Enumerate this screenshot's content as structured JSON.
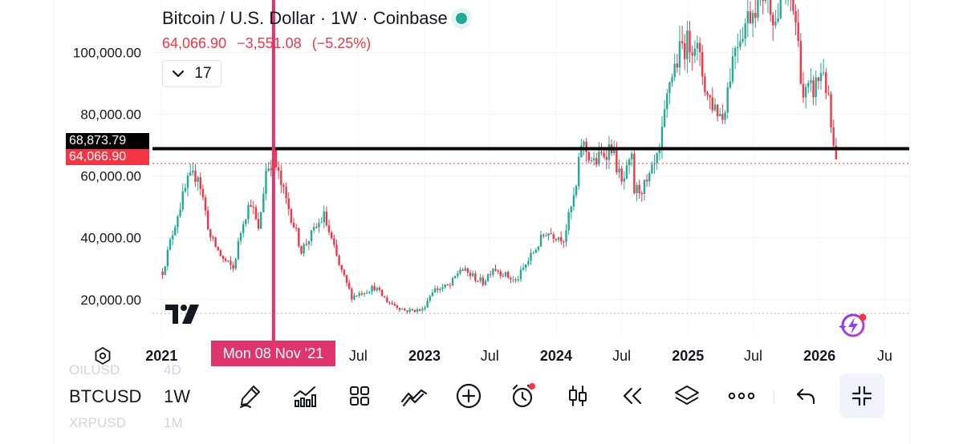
{
  "chart_data": {
    "type": "candlestick",
    "title": "Bitcoin / U.S. Dollar · 1W · Coinbase",
    "last_price": "64,066.90",
    "change": "−3,551.08",
    "change_pct": "(−5.25%)",
    "indicator_count": "17",
    "y_ticks": [
      {
        "value": 20000,
        "label": "20,000.00"
      },
      {
        "value": 40000,
        "label": "40,000.00"
      },
      {
        "value": 60000,
        "label": "60,000.00"
      },
      {
        "value": 80000,
        "label": "80,000.00"
      },
      {
        "value": 100000,
        "label": "100,000.00"
      }
    ],
    "x_ticks": [
      {
        "date": "2021-01-01",
        "label": "2021",
        "bold": true
      },
      {
        "date": "2022-07-01",
        "label": "Jul",
        "bold": false
      },
      {
        "date": "2023-01-01",
        "label": "2023",
        "bold": true
      },
      {
        "date": "2023-07-01",
        "label": "Jul",
        "bold": false
      },
      {
        "date": "2024-01-01",
        "label": "2024",
        "bold": true
      },
      {
        "date": "2024-07-01",
        "label": "Jul",
        "bold": false
      },
      {
        "date": "2025-01-01",
        "label": "2025",
        "bold": true
      },
      {
        "date": "2025-07-01",
        "label": "Jul",
        "bold": false
      },
      {
        "date": "2026-01-01",
        "label": "2026",
        "bold": true
      },
      {
        "date": "2026-07-01",
        "label": "Ju",
        "bold": false
      }
    ],
    "y_range": [
      8000,
      117000
    ],
    "x_range": [
      "2020-12-07",
      "2026-09-07"
    ],
    "horizontal_line": {
      "value": 68873.79,
      "label": "68,873.79",
      "color": "#000000"
    },
    "last_price_line": {
      "value": 64066.9,
      "label": "64,066.90",
      "color": "#f23645"
    },
    "low_line": {
      "value": 15500
    },
    "crosshair": {
      "date": "2021-11-08",
      "label": "Mon 08 Nov '21",
      "color": "#e0356c"
    },
    "up_color": "#22ab94",
    "down_color": "#f23645",
    "anchors": [
      [
        "2021-01-04",
        29000
      ],
      [
        "2021-02-15",
        48000
      ],
      [
        "2021-03-15",
        58000
      ],
      [
        "2021-04-12",
        61000
      ],
      [
        "2021-05-17",
        40000
      ],
      [
        "2021-06-21",
        33000
      ],
      [
        "2021-07-19",
        30000
      ],
      [
        "2021-08-16",
        46000
      ],
      [
        "2021-09-06",
        52000
      ],
      [
        "2021-09-27",
        42000
      ],
      [
        "2021-10-18",
        62000
      ],
      [
        "2021-11-08",
        66000
      ],
      [
        "2021-11-29",
        57000
      ],
      [
        "2021-12-27",
        47000
      ],
      [
        "2022-01-24",
        36000
      ],
      [
        "2022-03-28",
        47000
      ],
      [
        "2022-05-09",
        31000
      ],
      [
        "2022-06-13",
        21000
      ],
      [
        "2022-08-15",
        24000
      ],
      [
        "2022-09-19",
        19500
      ],
      [
        "2022-11-07",
        16500
      ],
      [
        "2022-12-26",
        16600
      ],
      [
        "2023-01-23",
        23000
      ],
      [
        "2023-03-13",
        24500
      ],
      [
        "2023-04-10",
        30000
      ],
      [
        "2023-06-12",
        25500
      ],
      [
        "2023-07-10",
        30500
      ],
      [
        "2023-09-11",
        25800
      ],
      [
        "2023-10-23",
        34000
      ],
      [
        "2023-12-04",
        42000
      ],
      [
        "2024-01-22",
        40000
      ],
      [
        "2024-02-26",
        56000
      ],
      [
        "2024-03-11",
        71000
      ],
      [
        "2024-04-15",
        64000
      ],
      [
        "2024-06-03",
        70000
      ],
      [
        "2024-07-01",
        57000
      ],
      [
        "2024-07-29",
        65000
      ],
      [
        "2024-08-05",
        55000
      ],
      [
        "2024-09-09",
        57000
      ],
      [
        "2024-10-14",
        67000
      ],
      [
        "2024-11-11",
        91000
      ],
      [
        "2024-12-16",
        102000
      ],
      [
        "2025-01-20",
        104000
      ],
      [
        "2025-02-24",
        86000
      ],
      [
        "2025-04-07",
        79000
      ],
      [
        "2025-05-12",
        103000
      ],
      [
        "2025-07-14",
        118000
      ],
      [
        "2025-08-11",
        120000
      ],
      [
        "2025-09-01",
        110000
      ],
      [
        "2025-10-06",
        122000
      ],
      [
        "2025-10-27",
        110000
      ],
      [
        "2025-11-17",
        86000
      ],
      [
        "2025-12-15",
        88000
      ],
      [
        "2026-01-12",
        95000
      ],
      [
        "2026-01-26",
        83000
      ],
      [
        "2026-02-09",
        68000
      ],
      [
        "2026-02-16",
        64000
      ]
    ]
  },
  "toolbar": {
    "symbol": "BTCUSD",
    "interval": "1W",
    "symbol_above": "OILUSD",
    "interval_above": "4D",
    "symbol_below": "XRPUSD",
    "interval_below": "1M",
    "icons": [
      "pen-icon",
      "indicators-icon",
      "layouts-icon",
      "trend-icon",
      "add-icon",
      "alert-icon",
      "candles-icon",
      "replay-icon",
      "layers-icon",
      "more-icon",
      "undo-icon",
      "collapse-icon"
    ]
  }
}
